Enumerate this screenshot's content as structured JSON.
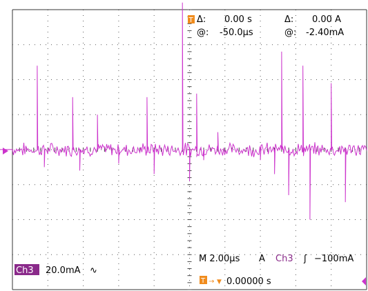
{
  "cursor_readout": {
    "delta_time_label": "Δ:",
    "delta_time_value": "0.00 s",
    "delta_amp_label": "Δ:",
    "delta_amp_value": "0.00 A",
    "at_time_label": "@:",
    "at_time_value": "-50.0µs",
    "at_amp_label": "@:",
    "at_amp_value": "-2.40mA"
  },
  "channel": {
    "badge": "Ch3",
    "scale": "20.0mA",
    "coupling_symbol": "∿",
    "color": "#cc33cc"
  },
  "timebase": {
    "main": "M 2.00µs",
    "trigger_source_unit": "A",
    "trigger_channel": "Ch3",
    "trigger_slope_symbol": "ʃ",
    "trigger_level": "−100mA",
    "trigger_position": "0.00000 s"
  },
  "markers": {
    "trigger_marker_icon": "T",
    "accent_color": "#f08c1e"
  },
  "chart_data": {
    "type": "line",
    "title": "",
    "xlabel": "",
    "ylabel": "",
    "x_divisions": 10,
    "y_divisions": 8,
    "grid": true,
    "series": [
      {
        "name": "Ch3",
        "baseline_div": 0,
        "spikes_div": [
          [
            -8.8,
            0.9
          ],
          [
            -8.6,
            -0.5
          ],
          [
            -7.9,
            1.4
          ],
          [
            -7.6,
            -0.4
          ],
          [
            -7.0,
            2.2
          ],
          [
            -6.9,
            -0.6
          ],
          [
            -6.2,
            1.1
          ],
          [
            -6.0,
            -3.1
          ],
          [
            -5.8,
            0.8
          ],
          [
            -4.3,
            2.4
          ],
          [
            -4.1,
            -0.5
          ],
          [
            -3.3,
            1.5
          ],
          [
            -3.1,
            -0.6
          ],
          [
            -2.6,
            1.0
          ],
          [
            -2.0,
            -0.4
          ],
          [
            -1.2,
            1.5
          ],
          [
            -1.0,
            -0.7
          ],
          [
            -0.2,
            4.2
          ],
          [
            0.0,
            -0.9
          ],
          [
            0.2,
            1.6
          ],
          [
            0.4,
            -0.3
          ],
          [
            0.8,
            0.5
          ],
          [
            2.0,
            -0.3
          ],
          [
            2.4,
            -0.7
          ],
          [
            2.6,
            2.8
          ],
          [
            2.8,
            -1.3
          ],
          [
            3.2,
            2.4
          ],
          [
            3.4,
            -2.0
          ],
          [
            4.0,
            1.9
          ],
          [
            4.4,
            -1.5
          ],
          [
            5.5,
            3.5
          ],
          [
            6.0,
            -1.8
          ],
          [
            6.8,
            0.9
          ],
          [
            7.6,
            2.6
          ],
          [
            7.8,
            -1.4
          ],
          [
            8.5,
            3.0
          ],
          [
            8.7,
            -1.2
          ],
          [
            9.6,
            3.8
          ],
          [
            9.8,
            -2.5
          ],
          [
            10.2,
            1.0
          ]
        ]
      }
    ]
  }
}
